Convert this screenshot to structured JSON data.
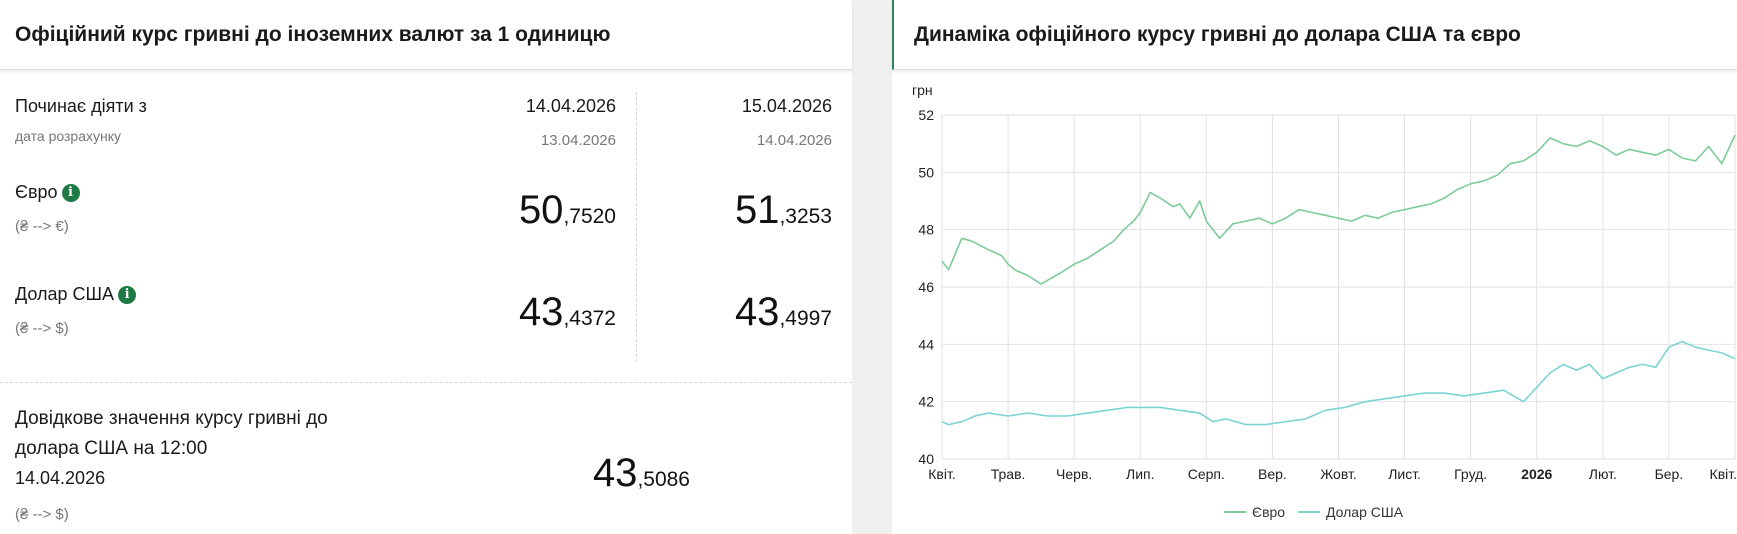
{
  "rates": {
    "title": "Офіційний курс гривні до іноземних валют за 1 одиницю",
    "start_label": "Починає діяти з",
    "calc_label": "дата розрахунку",
    "columns": [
      {
        "start_date": "14.04.2026",
        "calc_date": "13.04.2026",
        "eur_int": "50",
        "eur_frac": ",7520",
        "usd_int": "43",
        "usd_frac": ",4372"
      },
      {
        "start_date": "15.04.2026",
        "calc_date": "14.04.2026",
        "eur_int": "51",
        "eur_frac": ",3253",
        "usd_int": "43",
        "usd_frac": ",4997"
      }
    ],
    "eur_label": "Євро",
    "eur_sub": "(₴ --> €)",
    "usd_label": "Долар США",
    "usd_sub": "(₴ --> $)",
    "info_icon": "i",
    "ref": {
      "label_line1": "Довідкове значення курсу гривні до",
      "label_line2": "долара США на 12:00",
      "date": "14.04.2026",
      "sub": "(₴ --> $)",
      "value_int": "43",
      "value_frac": ",5086"
    }
  },
  "chart_panel": {
    "title": "Динаміка офіційного курсу гривні до долара США та євро"
  },
  "chart_data": {
    "type": "line",
    "ylabel": "грн",
    "ylim": [
      40,
      52
    ],
    "yticks": [
      "40",
      "42",
      "44",
      "46",
      "48",
      "50",
      "52"
    ],
    "xticks": [
      "Квіт.",
      "Трав.",
      "Черв.",
      "Лип.",
      "Серп.",
      "Вер.",
      "Жовт.",
      "Лист.",
      "Груд.",
      "2026",
      "Лют.",
      "Бер.",
      "Квіт."
    ],
    "bold_tick": "2026",
    "grid": true,
    "legend_position": "bottom",
    "series": [
      {
        "name": "Євро",
        "color": "#7ccc98",
        "x": [
          0,
          0.1,
          0.3,
          0.45,
          0.7,
          0.9,
          1.0,
          1.1,
          1.3,
          1.5,
          1.8,
          2.0,
          2.2,
          2.4,
          2.6,
          2.75,
          2.9,
          3.0,
          3.15,
          3.3,
          3.5,
          3.6,
          3.75,
          3.9,
          4.0,
          4.2,
          4.4,
          4.6,
          4.8,
          5.0,
          5.2,
          5.4,
          5.6,
          5.8,
          6.0,
          6.2,
          6.4,
          6.6,
          6.8,
          7.0,
          7.2,
          7.4,
          7.6,
          7.8,
          8.0,
          8.2,
          8.4,
          8.6,
          8.8,
          9.0,
          9.2,
          9.4,
          9.6,
          9.8,
          10.0,
          10.2,
          10.4,
          10.6,
          10.8,
          11.0,
          11.2,
          11.4,
          11.6,
          11.8,
          12.0
        ],
        "y": [
          46.9,
          46.6,
          47.7,
          47.6,
          47.3,
          47.1,
          46.8,
          46.6,
          46.4,
          46.1,
          46.5,
          46.8,
          47.0,
          47.3,
          47.6,
          48.0,
          48.3,
          48.6,
          49.3,
          49.1,
          48.8,
          48.9,
          48.4,
          49.0,
          48.3,
          47.7,
          48.2,
          48.3,
          48.4,
          48.2,
          48.4,
          48.7,
          48.6,
          48.5,
          48.4,
          48.3,
          48.5,
          48.4,
          48.6,
          48.7,
          48.8,
          48.9,
          49.1,
          49.4,
          49.6,
          49.7,
          49.9,
          50.3,
          50.4,
          50.7,
          51.2,
          51.0,
          50.9,
          51.1,
          50.9,
          50.6,
          50.8,
          50.7,
          50.6,
          50.8,
          50.5,
          50.4,
          50.9,
          50.3,
          51.3
        ]
      },
      {
        "name": "Долар США",
        "color": "#7dd3d3",
        "x": [
          0,
          0.1,
          0.3,
          0.5,
          0.7,
          1.0,
          1.3,
          1.6,
          1.9,
          2.2,
          2.5,
          2.8,
          3.0,
          3.3,
          3.6,
          3.9,
          4.1,
          4.3,
          4.6,
          4.9,
          5.2,
          5.5,
          5.8,
          6.1,
          6.4,
          6.7,
          7.0,
          7.3,
          7.6,
          7.9,
          8.2,
          8.5,
          8.8,
          9.0,
          9.2,
          9.4,
          9.6,
          9.8,
          10.0,
          10.2,
          10.4,
          10.6,
          10.8,
          11.0,
          11.2,
          11.4,
          11.6,
          11.8,
          12.0
        ],
        "y": [
          41.3,
          41.2,
          41.3,
          41.5,
          41.6,
          41.5,
          41.6,
          41.5,
          41.5,
          41.6,
          41.7,
          41.8,
          41.8,
          41.8,
          41.7,
          41.6,
          41.3,
          41.4,
          41.2,
          41.2,
          41.3,
          41.4,
          41.7,
          41.8,
          42.0,
          42.1,
          42.2,
          42.3,
          42.3,
          42.2,
          42.3,
          42.4,
          42.0,
          42.5,
          43.0,
          43.3,
          43.1,
          43.3,
          42.8,
          43.0,
          43.2,
          43.3,
          43.2,
          43.9,
          44.1,
          43.9,
          43.8,
          43.7,
          43.5
        ]
      }
    ]
  }
}
